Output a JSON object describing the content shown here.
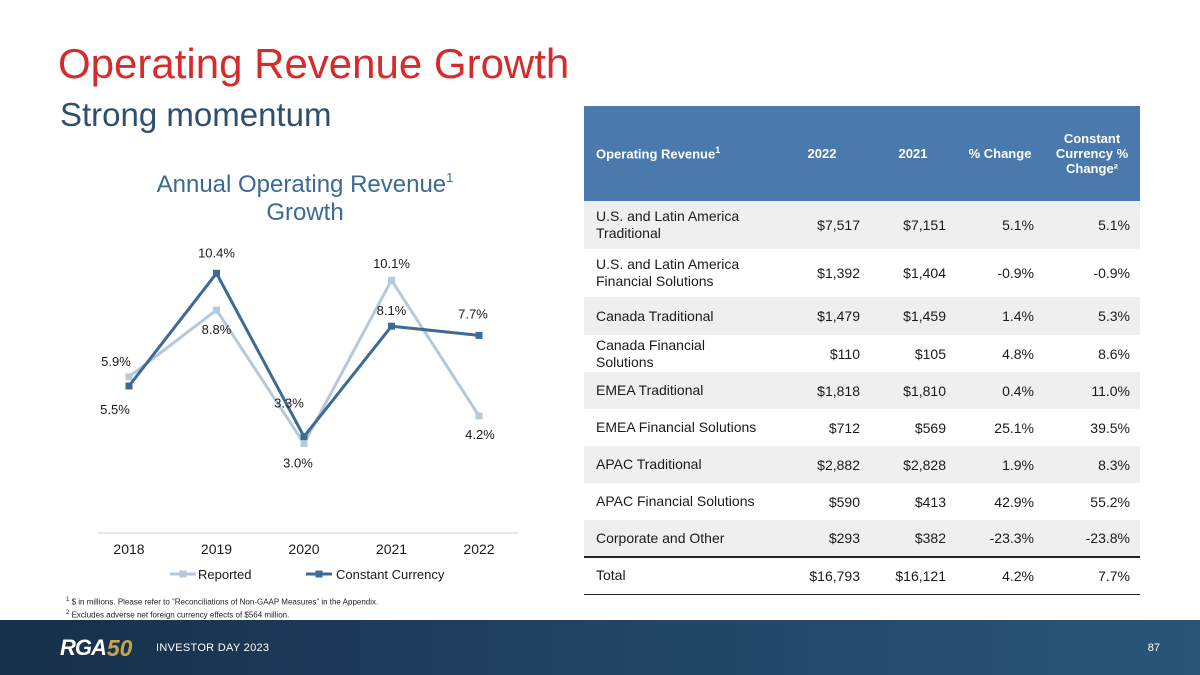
{
  "header": {
    "title": "Operating Revenue Growth",
    "subtitle": "Strong momentum"
  },
  "chart_data": {
    "type": "line",
    "title": "Annual Operating Revenue",
    "title_superscript": "1",
    "title_line2": "Growth",
    "categories": [
      "2018",
      "2019",
      "2020",
      "2021",
      "2022"
    ],
    "series": [
      {
        "name": "Reported",
        "color": "#b5c9dc",
        "values": [
          5.9,
          8.8,
          3.0,
          10.1,
          4.2
        ],
        "labels": [
          "5.9%",
          "8.8%",
          "3.0%",
          "10.1%",
          "4.2%"
        ]
      },
      {
        "name": "Constant Currency",
        "color": "#3d6b95",
        "values": [
          5.5,
          10.4,
          3.3,
          8.1,
          7.7
        ],
        "labels": [
          "5.5%",
          "10.4%",
          "3.3%",
          "8.1%",
          "7.7%"
        ]
      }
    ],
    "ylim": [
      1.5,
      11.5
    ],
    "grid": false,
    "legend": "bottom"
  },
  "footnotes": {
    "n1": "$ in millions. Please refer to “Reconciliations of Non-GAAP Measures” in the Appendix.",
    "n2": "Excludes adverse net foreign currency effects of $564 million.",
    "n1_mark": "1",
    "n2_mark": "2"
  },
  "table": {
    "headers": {
      "label": "Operating Revenue",
      "label_sup": "1",
      "y2022": "2022",
      "y2021": "2021",
      "change": "% Change",
      "cc_change": "Constant Currency % Change²"
    },
    "rows": [
      {
        "label": "U.S. and Latin America Traditional",
        "v2022": "$7,517",
        "v2021": "$7,151",
        "change": "5.1%",
        "cc": "5.1%"
      },
      {
        "label": "U.S. and Latin America Financial Solutions",
        "v2022": "$1,392",
        "v2021": "$1,404",
        "change": "-0.9%",
        "cc": "-0.9%"
      },
      {
        "label": "Canada Traditional",
        "v2022": "$1,479",
        "v2021": "$1,459",
        "change": "1.4%",
        "cc": "5.3%"
      },
      {
        "label": "Canada Financial Solutions",
        "v2022": "$110",
        "v2021": "$105",
        "change": "4.8%",
        "cc": "8.6%"
      },
      {
        "label": "EMEA Traditional",
        "v2022": "$1,818",
        "v2021": "$1,810",
        "change": "0.4%",
        "cc": "11.0%"
      },
      {
        "label": "EMEA Financial Solutions",
        "v2022": "$712",
        "v2021": "$569",
        "change": "25.1%",
        "cc": "39.5%"
      },
      {
        "label": "APAC Traditional",
        "v2022": "$2,882",
        "v2021": "$2,828",
        "change": "1.9%",
        "cc": "8.3%"
      },
      {
        "label": "APAC Financial Solutions",
        "v2022": "$590",
        "v2021": "$413",
        "change": "42.9%",
        "cc": "55.2%"
      },
      {
        "label": "Corporate and Other",
        "v2022": "$293",
        "v2021": "$382",
        "change": "-23.3%",
        "cc": "-23.8%"
      }
    ],
    "total": {
      "label": "Total",
      "v2022": "$16,793",
      "v2021": "$16,121",
      "change": "4.2%",
      "cc": "7.7%"
    }
  },
  "footer": {
    "logo_text": "RGA",
    "logo_number": "50",
    "event": "INVESTOR DAY 2023",
    "page_number": "87"
  }
}
